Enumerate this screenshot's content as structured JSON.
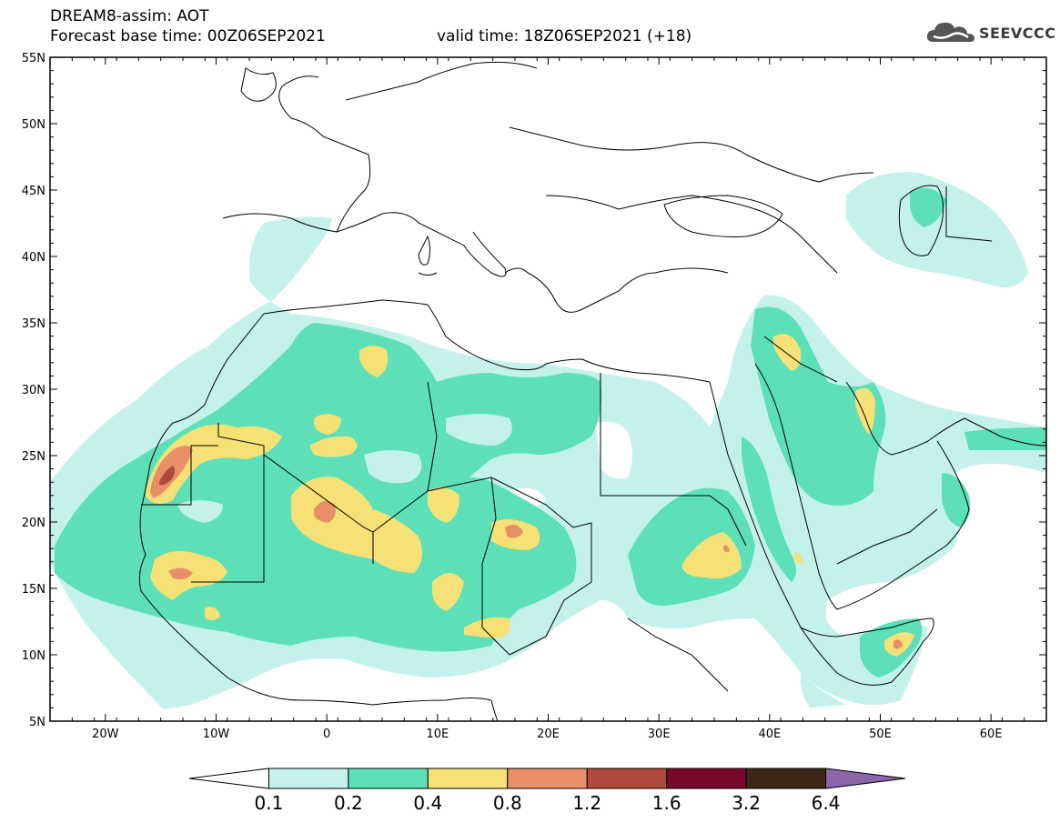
{
  "header": {
    "model_line": "DREAM8-assim: AOT",
    "base_time": "Forecast base time: 00Z06SEP2021",
    "valid_time": "valid time: 18Z06SEP2021 (+18)"
  },
  "logo": {
    "text": "SEEVCCC",
    "icon": "cloud-icon"
  },
  "map": {
    "lon_range": [
      -25,
      65
    ],
    "lat_range": [
      5,
      55
    ],
    "lat_ticks": [
      "55N",
      "50N",
      "45N",
      "40N",
      "35N",
      "30N",
      "25N",
      "20N",
      "15N",
      "10N",
      "5N"
    ],
    "lon_ticks": [
      "20W",
      "10W",
      "0",
      "10E",
      "20E",
      "30E",
      "40E",
      "50E",
      "60E"
    ]
  },
  "colorbar": {
    "levels": [
      "0.1",
      "0.2",
      "0.4",
      "0.8",
      "1.2",
      "1.6",
      "3.2",
      "6.4"
    ],
    "colors": [
      "#ffffff",
      "#c4f2ea",
      "#5ddfb8",
      "#f5e176",
      "#e88f68",
      "#b04a3c",
      "#7a0a2b",
      "#3d2616",
      "#8c64a8"
    ]
  }
}
